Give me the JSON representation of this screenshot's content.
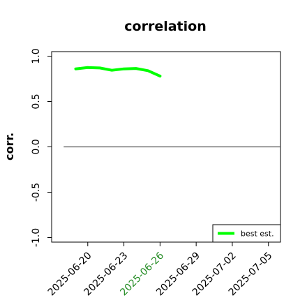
{
  "chart_data": {
    "type": "line",
    "title": "correlation",
    "xlabel": "",
    "ylabel": "corr.",
    "x_tick_labels": [
      "2025-06-20",
      "2025-06-23",
      "2025-06-26",
      "2025-06-29",
      "2025-07-02",
      "2025-07-05"
    ],
    "highlighted_x_tick": "2025-06-26",
    "highlight_color": "#228B22",
    "y_tick_labels": [
      "-1.0",
      "-0.5",
      "0.0",
      "0.5",
      "1.0"
    ],
    "ylim": [
      -1.05,
      1.05
    ],
    "xlim": [
      "2025-06-17",
      "2025-07-06"
    ],
    "series": [
      {
        "name": "best est.",
        "color": "#00ff00",
        "x": [
          "2025-06-19",
          "2025-06-20",
          "2025-06-21",
          "2025-06-22",
          "2025-06-23",
          "2025-06-24",
          "2025-06-25",
          "2025-06-26"
        ],
        "values": [
          0.86,
          0.875,
          0.87,
          0.845,
          0.86,
          0.865,
          0.84,
          0.78
        ]
      }
    ],
    "reference_line": {
      "y": 0,
      "x_from": "2025-06-18",
      "x_to": "2025-07-06",
      "color": "#555555"
    },
    "legend": {
      "position": "bottom-right",
      "entries": [
        "best est."
      ]
    },
    "grid": false
  }
}
